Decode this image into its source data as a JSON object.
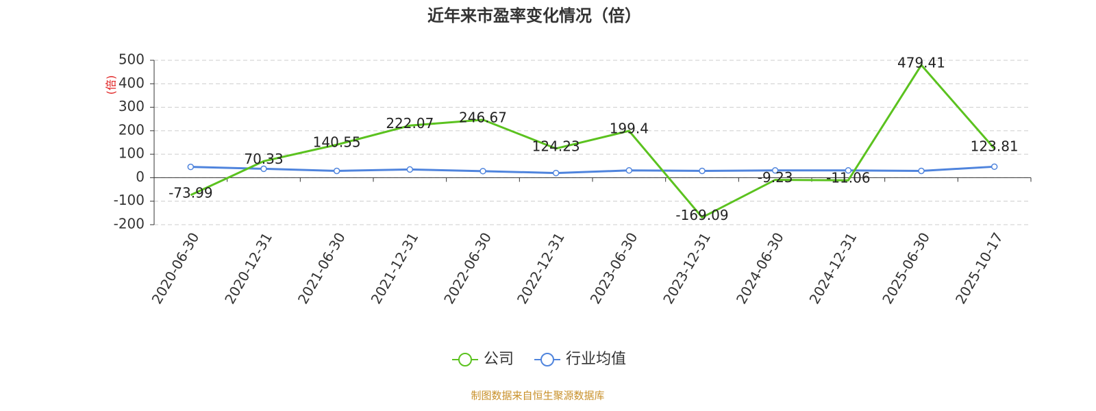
{
  "chart_data": {
    "type": "line",
    "title": "近年来市盈率变化情况（倍）",
    "y_label": "(倍)",
    "categories": [
      "2020-06-30",
      "2020-12-31",
      "2021-06-30",
      "2021-12-31",
      "2022-06-30",
      "2022-12-31",
      "2023-06-30",
      "2023-12-31",
      "2024-06-30",
      "2024-12-31",
      "2025-06-30",
      "2025-10-17"
    ],
    "series": [
      {
        "name": "公司",
        "color": "#5bc21f",
        "values": [
          -73.99,
          70.33,
          140.55,
          222.07,
          246.67,
          124.23,
          199.4,
          -169.09,
          -9.23,
          -11.06,
          479.41,
          123.81
        ],
        "labels": true
      },
      {
        "name": "行业均值",
        "color": "#4f84dd",
        "values": [
          46,
          38,
          29,
          35,
          28,
          20,
          31,
          29,
          31,
          31,
          29,
          47
        ],
        "labels": false
      }
    ],
    "ylim": [
      -200,
      500
    ],
    "yticks": [
      -200,
      -100,
      0,
      100,
      200,
      300,
      400,
      500
    ],
    "grid": true,
    "source": "制图数据来自恒生聚源数据库"
  }
}
